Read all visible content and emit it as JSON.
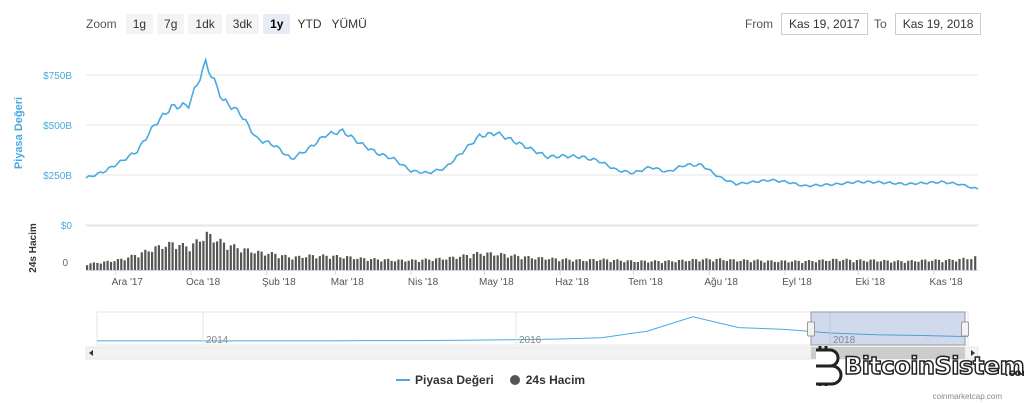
{
  "zoom": {
    "label": "Zoom",
    "buttons": [
      {
        "label": "1g",
        "active": false
      },
      {
        "label": "7g",
        "active": false
      },
      {
        "label": "1dk",
        "active": false
      },
      {
        "label": "3dk",
        "active": false
      },
      {
        "label": "1y",
        "active": true
      },
      {
        "label": "YTD",
        "active": false
      },
      {
        "label": "YÜMÜ",
        "active": false
      }
    ]
  },
  "range": {
    "from_label": "From",
    "from_value": "Kas 19, 2017",
    "to_label": "To",
    "to_value": "Kas 19, 2018"
  },
  "legend": {
    "market_cap": "Piyasa Değeri",
    "volume": "24s Hacim"
  },
  "credit": "coinmarketcap.com",
  "watermark": {
    "text": "BitcoinSistemi",
    "suffix": ".com"
  },
  "colors": {
    "line": "#4aa9e0",
    "volume": "#555555",
    "navigator_fill": "#c9d6ee"
  },
  "chart_data": {
    "type": "line",
    "title": "",
    "x": [
      "2017-11-19",
      "2017-11-26",
      "2017-12-03",
      "2017-12-10",
      "2017-12-17",
      "2017-12-24",
      "2017-12-31",
      "2018-01-07",
      "2018-01-14",
      "2018-01-21",
      "2018-01-28",
      "2018-02-04",
      "2018-02-11",
      "2018-02-18",
      "2018-02-25",
      "2018-03-04",
      "2018-03-11",
      "2018-03-18",
      "2018-03-25",
      "2018-04-01",
      "2018-04-08",
      "2018-04-15",
      "2018-04-22",
      "2018-04-29",
      "2018-05-06",
      "2018-05-13",
      "2018-05-20",
      "2018-05-27",
      "2018-06-03",
      "2018-06-10",
      "2018-06-17",
      "2018-06-24",
      "2018-07-01",
      "2018-07-08",
      "2018-07-15",
      "2018-07-22",
      "2018-07-29",
      "2018-08-05",
      "2018-08-12",
      "2018-08-19",
      "2018-08-26",
      "2018-09-02",
      "2018-09-09",
      "2018-09-16",
      "2018-09-23",
      "2018-09-30",
      "2018-10-07",
      "2018-10-14",
      "2018-10-21",
      "2018-10-28",
      "2018-11-04",
      "2018-11-11",
      "2018-11-19"
    ],
    "series": [
      {
        "name": "Piyasa Değeri",
        "axis": "Piyasa Değeri",
        "values": [
          235,
          265,
          315,
          370,
          500,
          590,
          600,
          810,
          625,
          560,
          430,
          400,
          330,
          380,
          450,
          470,
          410,
          360,
          330,
          270,
          260,
          285,
          365,
          445,
          460,
          420,
          380,
          340,
          345,
          340,
          320,
          275,
          260,
          290,
          265,
          300,
          300,
          240,
          205,
          215,
          225,
          215,
          195,
          200,
          205,
          215,
          215,
          210,
          205,
          210,
          215,
          205,
          180
        ]
      },
      {
        "name": "24s Hacim",
        "axis": "24s Hacim",
        "values": [
          7,
          9,
          12,
          18,
          25,
          30,
          26,
          40,
          30,
          24,
          20,
          18,
          14,
          16,
          16,
          15,
          13,
          12,
          11,
          11,
          12,
          13,
          16,
          19,
          18,
          16,
          14,
          13,
          12,
          11,
          12,
          11,
          10,
          10,
          10,
          11,
          12,
          12,
          11,
          11,
          10,
          10,
          10,
          11,
          12,
          11,
          11,
          10,
          10,
          11,
          11,
          12,
          15
        ]
      }
    ],
    "yaxis_market_cap": {
      "label": "Piyasa Değeri",
      "ticks": [
        "$0",
        "$250B",
        "$500B",
        "$750B"
      ],
      "tick_values": [
        0,
        250,
        500,
        750
      ],
      "range": [
        0,
        900
      ]
    },
    "yaxis_volume": {
      "label": "24s Hacim",
      "ticks": [
        "0"
      ],
      "range": [
        0,
        45
      ]
    },
    "xaxis_ticks": [
      "Ara '17",
      "Oca '18",
      "Şub '18",
      "Mar '18",
      "Nis '18",
      "May '18",
      "Haz '18",
      "Tem '18",
      "Ağu '18",
      "Eyl '18",
      "Eki '18",
      "Kas '18"
    ],
    "navigator": {
      "labels": [
        "2014",
        "2016",
        "2018"
      ],
      "values": [
        3,
        3,
        3,
        3,
        3,
        3,
        4,
        4,
        5,
        6,
        8,
        12,
        30,
        70,
        40,
        35,
        25,
        20,
        18,
        15
      ],
      "selection_from": "Kas 19, 2017",
      "selection_to": "Kas 19, 2018"
    },
    "grid": true,
    "legend_position": "bottom-center"
  }
}
